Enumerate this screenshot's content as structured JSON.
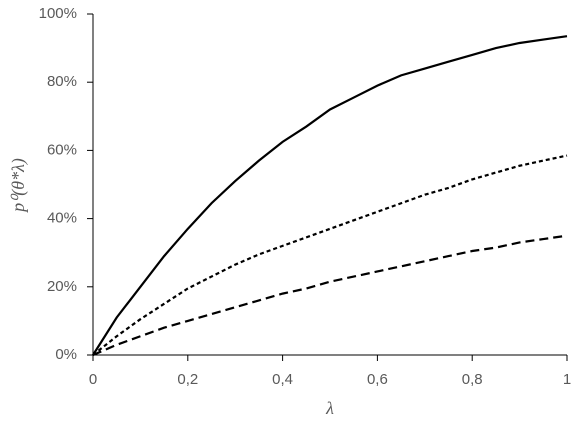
{
  "chart_data": {
    "type": "line",
    "x_label": "λ",
    "y_label": "p⁰(θ*λ)",
    "x": [
      0,
      0.05,
      0.1,
      0.15,
      0.2,
      0.25,
      0.3,
      0.35,
      0.4,
      0.45,
      0.5,
      0.55,
      0.6,
      0.65,
      0.7,
      0.75,
      0.8,
      0.85,
      0.9,
      0.95,
      1
    ],
    "series": [
      {
        "color": "#000000",
        "linestyle": "solid",
        "values": [
          0,
          11,
          20,
          29,
          37,
          44.5,
          51,
          57,
          62.5,
          67,
          72,
          75.5,
          79,
          82,
          84,
          86,
          88,
          90,
          91.5,
          92.5,
          93.5
        ]
      },
      {
        "color": "#000000",
        "linestyle": "dotted",
        "values": [
          0,
          5.5,
          10.5,
          15,
          19.5,
          23,
          26.5,
          29.5,
          32,
          34.5,
          37,
          39.5,
          42,
          44.5,
          47,
          49,
          51.5,
          53.5,
          55.5,
          57,
          58.5
        ]
      },
      {
        "color": "#000000",
        "linestyle": "dashed",
        "values": [
          0,
          3,
          5.5,
          8,
          10,
          12,
          14,
          16,
          18,
          19.5,
          21.5,
          23,
          24.5,
          26,
          27.5,
          29,
          30.5,
          31.5,
          33,
          34,
          35
        ]
      }
    ],
    "xlim": [
      0,
      1
    ],
    "xticks": [
      0,
      {
        "value": 0.2,
        "label": "0,2"
      },
      {
        "value": 0.4,
        "label": "0,4"
      },
      {
        "value": 0.6,
        "label": "0,6"
      },
      {
        "value": 0.8,
        "label": "0,8"
      },
      1
    ],
    "ylim": [
      0,
      100
    ],
    "yticks": [
      {
        "value": 0,
        "label": "0%"
      },
      {
        "value": 20,
        "label": "20%"
      },
      {
        "value": 40,
        "label": "40%"
      },
      {
        "value": 60,
        "label": "60%"
      },
      {
        "value": 80,
        "label": "80%"
      },
      {
        "value": 100,
        "label": "100%"
      }
    ],
    "grid": false
  }
}
